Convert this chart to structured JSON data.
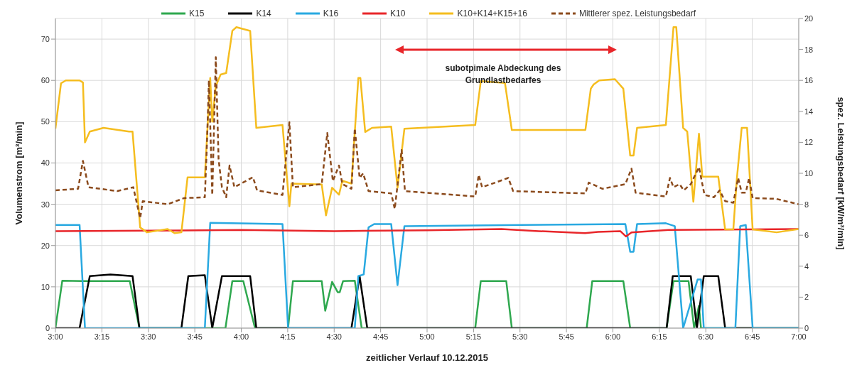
{
  "chart_data": {
    "type": "line",
    "xlabel": "zeitlicher Verlauf  10.12.2015",
    "ylabel": "Volumenstrom [m³/min]",
    "y2label": "spez. Leistungsbedarf [kW/m³/min]",
    "annotations": [
      "subotpimale Abdeckung des Grundlastbedarfes"
    ],
    "xlim": [
      3,
      7
    ],
    "xticks": [
      {
        "value": 3,
        "label": "3:00"
      },
      {
        "value": 3.25,
        "label": "3:15"
      },
      {
        "value": 3.5,
        "label": "3:30"
      },
      {
        "value": 3.75,
        "label": "3:45"
      },
      {
        "value": 4,
        "label": "4:00"
      },
      {
        "value": 4.25,
        "label": "4:15"
      },
      {
        "value": 4.5,
        "label": "4:30"
      },
      {
        "value": 4.75,
        "label": "4:45"
      },
      {
        "value": 5,
        "label": "5:00"
      },
      {
        "value": 5.25,
        "label": "5:15"
      },
      {
        "value": 5.5,
        "label": "5:30"
      },
      {
        "value": 5.75,
        "label": "5:45"
      },
      {
        "value": 6,
        "label": "6:00"
      },
      {
        "value": 6.25,
        "label": "6:15"
      },
      {
        "value": 6.5,
        "label": "6:30"
      },
      {
        "value": 6.75,
        "label": "6:45"
      },
      {
        "value": 7,
        "label": "7:00"
      }
    ],
    "ylim": [
      0,
      75
    ],
    "yticks": [
      0,
      10,
      20,
      30,
      40,
      50,
      60,
      70
    ],
    "y2lim": [
      0,
      20
    ],
    "y2ticks": [
      0,
      2,
      4,
      6,
      8,
      10,
      12,
      14,
      16,
      18,
      20
    ],
    "grid": true,
    "legend": "top",
    "marker": "none",
    "series": [
      {
        "name": "K15",
        "color": "#2fa84f",
        "line_style": "solid",
        "x": [
          3.0,
          3.037,
          3.148,
          3.4,
          3.452,
          3.915,
          3.952,
          4.011,
          4.074,
          4.252,
          4.278,
          4.433,
          4.452,
          4.489,
          4.519,
          4.53,
          4.548,
          4.611,
          4.648,
          5.259,
          5.289,
          5.426,
          5.456,
          5.859,
          5.889,
          6.056,
          6.093,
          6.289,
          6.326,
          6.407,
          6.437,
          6.463,
          6.474,
          7.0
        ],
        "values": [
          0,
          11.5,
          11.4,
          11.4,
          0,
          0,
          11.4,
          11.4,
          0,
          0,
          11.4,
          11.4,
          4.2,
          11.2,
          8.7,
          8.7,
          11.4,
          11.5,
          0,
          0,
          11.4,
          11.4,
          0,
          0,
          11.4,
          11.4,
          0,
          0,
          11.4,
          11.4,
          0,
          5.4,
          0,
          0
        ]
      },
      {
        "name": "K14",
        "color": "#000000",
        "line_style": "solid",
        "x": [
          3.0,
          3.13,
          3.185,
          3.296,
          3.415,
          3.452,
          3.678,
          3.715,
          3.804,
          3.844,
          3.896,
          4.048,
          4.081,
          4.593,
          4.637,
          4.678,
          6.289,
          6.322,
          6.419,
          6.452,
          6.489,
          6.567,
          6.604,
          7.0
        ],
        "values": [
          0,
          0,
          12.6,
          13,
          12.6,
          0,
          0,
          12.6,
          12.8,
          0,
          12.6,
          12.6,
          0,
          0,
          12.6,
          0,
          0,
          12.6,
          12.6,
          0,
          12.6,
          12.6,
          0,
          0
        ]
      },
      {
        "name": "K16",
        "color": "#29a9e1",
        "line_style": "solid",
        "x": [
          3.0,
          3.13,
          3.159,
          3.804,
          3.833,
          4.222,
          4.252,
          4.611,
          4.63,
          4.659,
          4.685,
          4.715,
          4.807,
          4.841,
          4.878,
          5.5,
          6.067,
          6.093,
          6.111,
          6.13,
          6.285,
          6.333,
          6.378,
          6.456,
          6.474,
          6.489,
          6.659,
          6.685,
          6.715,
          6.752,
          7.0
        ],
        "values": [
          25,
          25,
          0,
          0,
          25.5,
          25.2,
          0,
          0,
          12.6,
          13,
          24.4,
          25.2,
          25.2,
          10.4,
          24.7,
          25,
          25.2,
          18.5,
          18.5,
          25.2,
          25.4,
          24.7,
          0,
          11.8,
          11.8,
          0,
          0,
          24.7,
          25,
          0,
          0
        ]
      },
      {
        "name": "K10",
        "color": "#e8262a",
        "line_style": "solid",
        "x": [
          3.0,
          3.5,
          4.0,
          4.5,
          5.0,
          5.4,
          5.6,
          5.85,
          5.92,
          6.04,
          6.07,
          6.1,
          6.3,
          7.0
        ],
        "values": [
          23.5,
          23.6,
          23.8,
          23.5,
          23.7,
          24,
          23.5,
          23,
          23.3,
          23.5,
          22.2,
          23.2,
          23.8,
          24
        ]
      },
      {
        "name": "K10+K14+K15+16",
        "color": "#f5bd1f",
        "line_style": "solid",
        "x": [
          3.0,
          3.03,
          3.056,
          3.13,
          3.148,
          3.159,
          3.185,
          3.259,
          3.396,
          3.415,
          3.456,
          3.493,
          3.604,
          3.641,
          3.678,
          3.711,
          3.804,
          3.833,
          3.844,
          3.863,
          3.889,
          3.919,
          3.952,
          3.974,
          4.048,
          4.081,
          4.222,
          4.259,
          4.27,
          4.433,
          4.456,
          4.489,
          4.526,
          4.544,
          4.593,
          4.63,
          4.641,
          4.667,
          4.704,
          4.807,
          4.841,
          4.878,
          5.259,
          5.289,
          5.419,
          5.456,
          5.852,
          5.881,
          5.896,
          5.926,
          6.011,
          6.056,
          6.093,
          6.111,
          6.13,
          6.285,
          6.326,
          6.341,
          6.378,
          6.4,
          6.433,
          6.463,
          6.481,
          6.567,
          6.604,
          6.648,
          6.667,
          6.693,
          6.722,
          6.752,
          6.881,
          7.0
        ],
        "values": [
          48.3,
          59.3,
          60,
          60,
          59.5,
          45,
          47.6,
          48.5,
          47.6,
          47.6,
          24.4,
          23.2,
          24,
          23,
          23.2,
          36.5,
          36.5,
          60.6,
          50,
          58.6,
          61.4,
          61.8,
          72,
          72.9,
          72,
          48.5,
          49.2,
          29.5,
          35,
          34.8,
          27.3,
          34,
          32.3,
          35.7,
          35,
          60.6,
          60.6,
          47.5,
          48.5,
          48.8,
          34,
          48.3,
          49.2,
          59.8,
          59.4,
          48,
          48,
          58,
          59,
          60,
          60.3,
          58,
          41.8,
          41.8,
          48.5,
          49.2,
          72.9,
          72.9,
          48.5,
          47.6,
          30.6,
          47.1,
          36.7,
          36.7,
          23.9,
          23.9,
          36.2,
          48.5,
          48.5,
          23.9,
          23.2,
          24
        ]
      },
      {
        "name": "Mittlerer spez. Leistungsbedarf",
        "color": "#8b4a1c",
        "line_style": "dashed",
        "axis": "y2",
        "x": [
          3.0,
          3.122,
          3.148,
          3.178,
          3.333,
          3.419,
          3.456,
          3.47,
          3.604,
          3.693,
          3.804,
          3.815,
          3.826,
          3.844,
          3.863,
          3.878,
          3.896,
          3.919,
          3.937,
          3.963,
          4.063,
          4.085,
          4.222,
          4.259,
          4.278,
          4.433,
          4.463,
          4.493,
          4.526,
          4.544,
          4.593,
          4.611,
          4.637,
          4.656,
          4.685,
          4.807,
          4.826,
          4.863,
          4.881,
          5.259,
          5.278,
          5.296,
          5.437,
          5.463,
          5.852,
          5.87,
          5.944,
          6.067,
          6.1,
          6.122,
          6.285,
          6.307,
          6.326,
          6.359,
          6.381,
          6.419,
          6.463,
          6.493,
          6.544,
          6.574,
          6.604,
          6.648,
          6.674,
          6.693,
          6.715,
          6.733,
          6.752,
          6.878,
          7.0
        ],
        "values": [
          8.9,
          9.0,
          10.8,
          9.1,
          8.85,
          9.1,
          7.1,
          8.2,
          8.0,
          8.4,
          8.45,
          11.8,
          16.0,
          8.6,
          17.5,
          10.9,
          9.1,
          8.45,
          10.5,
          9.1,
          9.75,
          8.9,
          8.6,
          13.3,
          9.1,
          9.3,
          12.6,
          9.5,
          10.5,
          9.3,
          9.0,
          12.9,
          9.7,
          10.0,
          8.85,
          8.7,
          7.7,
          11.5,
          8.85,
          8.5,
          9.9,
          9.1,
          9.7,
          8.85,
          8.7,
          9.4,
          9.0,
          9.3,
          10.3,
          8.75,
          8.5,
          9.7,
          9.1,
          9.3,
          8.9,
          9.3,
          10.4,
          8.6,
          8.45,
          8.9,
          8.2,
          8.1,
          9.7,
          8.75,
          8.75,
          9.7,
          8.4,
          8.35,
          8.0
        ]
      }
    ]
  }
}
